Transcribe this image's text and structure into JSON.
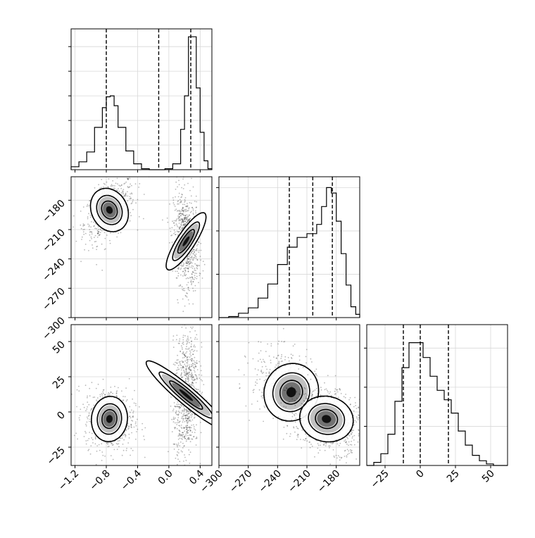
{
  "chart_data": {
    "type": "corner",
    "parameters": [
      {
        "ticks": [
          -1.2,
          -0.8,
          -0.4,
          0.0,
          0.4
        ],
        "tick_labels": [
          "−1.2",
          "−0.8",
          "−0.4",
          "0.0",
          "0.4"
        ],
        "range": [
          -1.25,
          0.55
        ],
        "quantiles": [
          -0.8,
          -0.13,
          0.28
        ]
      },
      {
        "ticks": [
          -300,
          -270,
          -240,
          -210,
          -180
        ],
        "tick_labels": [
          "−300",
          "−270",
          "−240",
          "−210",
          "−180"
        ],
        "range": [
          -300,
          -156
        ],
        "quantiles": [
          -228,
          -204,
          -184
        ]
      },
      {
        "ticks": [
          -25,
          0,
          25,
          50
        ],
        "tick_labels": [
          "−25",
          "0",
          "25",
          "50"
        ],
        "range": [
          -38,
          62
        ],
        "quantiles": [
          -12,
          0,
          20
        ]
      }
    ],
    "histograms": [
      {
        "parameter": 0,
        "bins": [
          [
            -1.25,
            -1.15,
            0.3
          ],
          [
            -1.15,
            -1.05,
            0.8
          ],
          [
            -1.05,
            -0.95,
            1.8
          ],
          [
            -0.95,
            -0.85,
            4.3
          ],
          [
            -0.85,
            -0.8,
            6.3
          ],
          [
            -0.8,
            -0.75,
            7.4
          ],
          [
            -0.75,
            -0.7,
            7.5
          ],
          [
            -0.7,
            -0.65,
            6.5
          ],
          [
            -0.65,
            -0.55,
            4.3
          ],
          [
            -0.55,
            -0.45,
            1.9
          ],
          [
            -0.45,
            -0.35,
            0.6
          ],
          [
            -0.35,
            -0.25,
            0.1
          ],
          [
            -0.25,
            -0.05,
            0.0
          ],
          [
            -0.05,
            0.05,
            0.1
          ],
          [
            0.05,
            0.15,
            0.6
          ],
          [
            0.15,
            0.2,
            4.1
          ],
          [
            0.2,
            0.25,
            7.5
          ],
          [
            0.25,
            0.3,
            13.5
          ],
          [
            0.3,
            0.35,
            13.5
          ],
          [
            0.35,
            0.4,
            8.3
          ],
          [
            0.4,
            0.45,
            3.8
          ],
          [
            0.45,
            0.5,
            0.9
          ],
          [
            0.5,
            0.55,
            0.1
          ]
        ],
        "y_max": 14.3
      },
      {
        "parameter": 1,
        "bins": [
          [
            -300,
            -290,
            0.0
          ],
          [
            -290,
            -280,
            0.2
          ],
          [
            -280,
            -270,
            0.8
          ],
          [
            -270,
            -260,
            1.8
          ],
          [
            -260,
            -250,
            3.6
          ],
          [
            -250,
            -240,
            6.2
          ],
          [
            -240,
            -230,
            9.8
          ],
          [
            -230,
            -220,
            13.0
          ],
          [
            -220,
            -210,
            14.8
          ],
          [
            -210,
            -200,
            15.5
          ],
          [
            -200,
            -195,
            17.2
          ],
          [
            -195,
            -190,
            20.5
          ],
          [
            -190,
            -185,
            24.0
          ],
          [
            -185,
            -180,
            23.0
          ],
          [
            -180,
            -175,
            17.8
          ],
          [
            -175,
            -170,
            11.8
          ],
          [
            -170,
            -165,
            6.0
          ],
          [
            -165,
            -160,
            2.0
          ],
          [
            -160,
            -156,
            0.6
          ]
        ],
        "y_max": 26.0
      },
      {
        "parameter": 2,
        "bins": [
          [
            -38,
            -33,
            0.0
          ],
          [
            -33,
            -28,
            0.4
          ],
          [
            -28,
            -23,
            1.5
          ],
          [
            -23,
            -18,
            4.0
          ],
          [
            -18,
            -13,
            8.2
          ],
          [
            -13,
            -8,
            12.5
          ],
          [
            -8,
            -3,
            15.7
          ],
          [
            -3,
            2,
            15.7
          ],
          [
            2,
            7,
            13.8
          ],
          [
            7,
            12,
            11.4
          ],
          [
            12,
            17,
            9.6
          ],
          [
            17,
            22,
            8.4
          ],
          [
            22,
            27,
            6.7
          ],
          [
            27,
            32,
            4.4
          ],
          [
            32,
            37,
            2.6
          ],
          [
            37,
            42,
            1.3
          ],
          [
            42,
            47,
            0.6
          ],
          [
            47,
            52,
            0.2
          ],
          [
            52,
            57,
            0.0
          ],
          [
            57,
            62,
            0.0
          ]
        ],
        "y_max": 18.0
      }
    ],
    "histogram_y_ticks": [
      [
        2.5,
        5,
        7.5,
        10,
        12.5
      ],
      [
        8,
        16,
        24
      ],
      [
        5,
        10,
        15
      ]
    ],
    "joint_modes": [
      {
        "pair": [
          0,
          1
        ],
        "modes": [
          {
            "center": [
              -0.76,
              -190
            ],
            "spread": [
              0.1,
              10
            ],
            "corr": 0.45,
            "weight": 0.45
          },
          {
            "center": [
              0.22,
              -222
            ],
            "spread": [
              0.05,
              15
            ],
            "corr": -0.2,
            "weight": 0.55
          }
        ]
      },
      {
        "pair": [
          0,
          2
        ],
        "modes": [
          {
            "center": [
              -0.76,
              -5
            ],
            "spread": [
              0.1,
              7
            ],
            "corr": -0.1,
            "weight": 0.45
          },
          {
            "center": [
              0.22,
              12
            ],
            "spread": [
              0.05,
              16
            ],
            "corr": 0.25,
            "weight": 0.55
          }
        ]
      },
      {
        "pair": [
          1,
          2
        ],
        "modes": [
          {
            "center": [
              -226,
              14
            ],
            "spread": [
              12,
              9
            ],
            "corr": -0.45,
            "weight": 0.45
          },
          {
            "center": [
              -190,
              -5
            ],
            "spread": [
              12,
              7
            ],
            "corr": -0.3,
            "weight": 0.55
          }
        ]
      }
    ],
    "grid": true,
    "quantile_style": "dashed",
    "contour_levels": 3
  }
}
